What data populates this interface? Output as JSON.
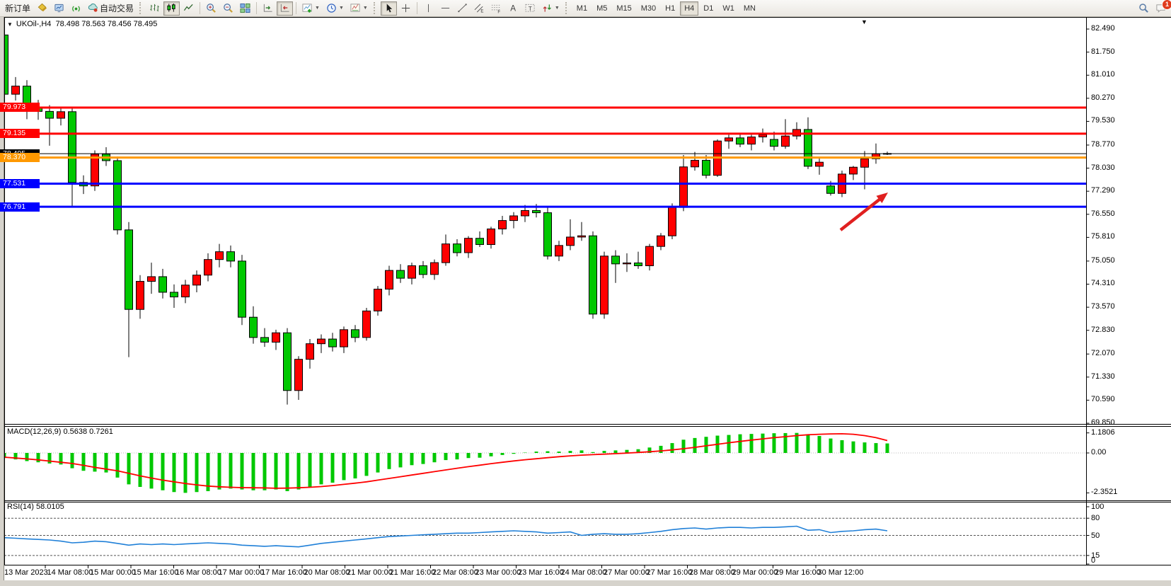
{
  "toolbar": {
    "new_order_label": "新订单",
    "autotrade_label": "自动交易",
    "notification_count": "1",
    "timeframes": [
      "M1",
      "M5",
      "M15",
      "M30",
      "H1",
      "H4",
      "D1",
      "W1",
      "MN"
    ],
    "active_timeframe": "H4",
    "letters": {
      "text": "A",
      "textbox": "T",
      "channel": "E",
      "fibonacci": "F"
    },
    "icons": [
      "new-chart-icon",
      "market-watch-icon",
      "signals-icon",
      "autotrade-icon",
      "bar-chart-icon",
      "candlestick-icon",
      "line-chart-icon",
      "zoom-in-icon",
      "zoom-out-icon",
      "tile-windows-icon",
      "auto-scroll-icon",
      "chart-shift-icon",
      "indicators-icon",
      "periods-icon",
      "templates-icon",
      "cursor-icon",
      "crosshair-icon",
      "vertical-line-icon",
      "horizontal-line-icon",
      "trendline-icon",
      "channel-icon",
      "fibonacci-icon",
      "text-icon",
      "text-label-icon",
      "shapes-icon",
      "search-icon",
      "chat-icon"
    ]
  },
  "chart": {
    "title_symbol": "UKOil-,H4",
    "title_ohlc": "78.498 78.563 78.456 78.495",
    "open": "78.498",
    "high": "78.563",
    "low": "78.456",
    "close": "78.495",
    "collapse_triangle": "▼",
    "shift_marker": "▼"
  },
  "chart_data": {
    "type": "candlestick",
    "symbol": "UKOil-",
    "timeframe": "H4",
    "bull_color": "#ff0000",
    "bear_color": "#00c800",
    "wick_color": "#000000",
    "price_ticks": [
      "82.490",
      "81.750",
      "81.010",
      "80.270",
      "79.530",
      "78.770",
      "78.030",
      "77.290",
      "76.550",
      "75.810",
      "75.050",
      "74.310",
      "73.570",
      "72.830",
      "72.070",
      "71.330",
      "70.590",
      "69.850"
    ],
    "time_labels": [
      "13 Mar 2023",
      "14 Mar 08:00",
      "15 Mar 00:00",
      "15 Mar 16:00",
      "16 Mar 08:00",
      "17 Mar 00:00",
      "17 Mar 16:00",
      "20 Mar 08:00",
      "21 Mar 00:00",
      "21 Mar 16:00",
      "22 Mar 08:00",
      "23 Mar 00:00",
      "23 Mar 16:00",
      "24 Mar 08:00",
      "27 Mar 00:00",
      "27 Mar 16:00",
      "28 Mar 08:00",
      "29 Mar 00:00",
      "29 Mar 16:00",
      "30 Mar 12:00"
    ],
    "levels": [
      {
        "label": "79.973",
        "price": 79.973,
        "color": "#ff0000",
        "width": 3
      },
      {
        "label": "79.135",
        "price": 79.135,
        "color": "#ff0000",
        "width": 3
      },
      {
        "label": "78.495",
        "price": 78.495,
        "color": "#000000",
        "width": 1
      },
      {
        "label": "78.370",
        "price": 78.37,
        "color": "#ff9900",
        "width": 3
      },
      {
        "label": "77.531",
        "price": 77.531,
        "color": "#0000ff",
        "width": 3
      },
      {
        "label": "76.791",
        "price": 76.791,
        "color": "#0000ff",
        "width": 3
      }
    ],
    "candles": [
      [
        82.3,
        82.46,
        80.25,
        80.4
      ],
      [
        80.4,
        80.95,
        80.2,
        80.66
      ],
      [
        80.66,
        80.85,
        79.6,
        79.95
      ],
      [
        79.95,
        80.22,
        79.58,
        79.85
      ],
      [
        79.85,
        80.05,
        78.75,
        79.63
      ],
      [
        79.63,
        80.0,
        79.4,
        79.84
      ],
      [
        79.84,
        79.95,
        76.81,
        77.57
      ],
      [
        77.57,
        77.8,
        77.2,
        77.46
      ],
      [
        77.46,
        78.6,
        77.3,
        78.48
      ],
      [
        78.48,
        78.7,
        78.1,
        78.27
      ],
      [
        78.27,
        78.4,
        75.9,
        76.05
      ],
      [
        76.05,
        76.3,
        71.97,
        73.5
      ],
      [
        73.5,
        74.6,
        73.2,
        74.4
      ],
      [
        74.4,
        75.0,
        74.0,
        74.55
      ],
      [
        74.55,
        74.8,
        73.85,
        74.05
      ],
      [
        74.05,
        74.3,
        73.55,
        73.9
      ],
      [
        73.9,
        74.45,
        73.7,
        74.28
      ],
      [
        74.28,
        74.75,
        74.05,
        74.6
      ],
      [
        74.6,
        75.3,
        74.4,
        75.1
      ],
      [
        75.1,
        75.6,
        74.85,
        75.35
      ],
      [
        75.35,
        75.55,
        74.85,
        75.05
      ],
      [
        75.05,
        75.25,
        73.0,
        73.25
      ],
      [
        73.25,
        73.6,
        72.4,
        72.6
      ],
      [
        72.6,
        72.9,
        72.3,
        72.45
      ],
      [
        72.45,
        72.85,
        72.2,
        72.75
      ],
      [
        72.75,
        72.9,
        70.45,
        70.9
      ],
      [
        70.9,
        72.0,
        70.6,
        71.9
      ],
      [
        71.9,
        72.55,
        71.6,
        72.4
      ],
      [
        72.4,
        72.7,
        72.1,
        72.55
      ],
      [
        72.55,
        72.75,
        72.15,
        72.3
      ],
      [
        72.3,
        72.95,
        72.1,
        72.85
      ],
      [
        72.85,
        73.0,
        72.45,
        72.6
      ],
      [
        72.6,
        73.55,
        72.5,
        73.45
      ],
      [
        73.45,
        74.25,
        73.3,
        74.15
      ],
      [
        74.15,
        74.9,
        73.95,
        74.75
      ],
      [
        74.75,
        74.95,
        74.35,
        74.5
      ],
      [
        74.5,
        75.0,
        74.3,
        74.9
      ],
      [
        74.9,
        75.05,
        74.5,
        74.62
      ],
      [
        74.62,
        75.1,
        74.45,
        75.0
      ],
      [
        75.0,
        75.9,
        74.9,
        75.6
      ],
      [
        75.6,
        75.75,
        75.2,
        75.32
      ],
      [
        75.32,
        75.85,
        75.15,
        75.78
      ],
      [
        75.78,
        76.0,
        75.5,
        75.58
      ],
      [
        75.58,
        76.15,
        75.45,
        76.08
      ],
      [
        76.08,
        76.5,
        75.9,
        76.35
      ],
      [
        76.35,
        76.62,
        76.1,
        76.5
      ],
      [
        76.5,
        76.85,
        76.3,
        76.67
      ],
      [
        76.67,
        76.88,
        76.45,
        76.6
      ],
      [
        76.6,
        76.8,
        75.1,
        75.21
      ],
      [
        75.21,
        75.7,
        75.05,
        75.55
      ],
      [
        75.55,
        76.39,
        75.4,
        75.82
      ],
      [
        75.82,
        76.3,
        75.7,
        75.86
      ],
      [
        75.86,
        76.0,
        73.2,
        73.35
      ],
      [
        73.35,
        75.35,
        73.2,
        75.21
      ],
      [
        75.21,
        75.4,
        74.35,
        74.96
      ],
      [
        74.96,
        75.3,
        74.7,
        74.99
      ],
      [
        74.99,
        75.35,
        74.8,
        74.9
      ],
      [
        74.9,
        75.6,
        74.75,
        75.52
      ],
      [
        75.52,
        75.95,
        75.4,
        75.86
      ],
      [
        75.86,
        76.9,
        75.75,
        76.77
      ],
      [
        76.77,
        78.45,
        76.65,
        78.07
      ],
      [
        78.07,
        78.55,
        77.95,
        78.28
      ],
      [
        78.28,
        78.45,
        77.7,
        77.8
      ],
      [
        77.8,
        78.95,
        77.75,
        78.9
      ],
      [
        78.9,
        79.1,
        78.65,
        79.0
      ],
      [
        79.0,
        79.15,
        78.7,
        78.8
      ],
      [
        78.8,
        79.1,
        78.6,
        79.03
      ],
      [
        79.03,
        79.3,
        78.85,
        79.1
      ],
      [
        78.95,
        79.2,
        78.6,
        78.73
      ],
      [
        78.73,
        79.6,
        78.65,
        79.06
      ],
      [
        79.06,
        79.5,
        78.95,
        79.27
      ],
      [
        79.27,
        79.66,
        78.0,
        78.09
      ],
      [
        78.09,
        78.35,
        77.82,
        78.22
      ],
      [
        77.46,
        77.62,
        77.15,
        77.22
      ],
      [
        77.22,
        77.95,
        77.1,
        77.84
      ],
      [
        77.84,
        78.1,
        77.65,
        78.06
      ],
      [
        78.06,
        78.58,
        77.35,
        78.33
      ],
      [
        78.33,
        78.82,
        78.17,
        78.49
      ],
      [
        78.49,
        78.56,
        78.45,
        78.5
      ]
    ],
    "indicators": {
      "macd": {
        "label": "MACD(12,26,9) 0.5638 0.7261",
        "scale_ticks": [
          "1.1806",
          "0.00",
          "-2.3521"
        ],
        "hist_color": "#00c800",
        "signal_color": "#ff0000",
        "histogram": [
          -0.3,
          -0.38,
          -0.48,
          -0.55,
          -0.62,
          -0.68,
          -0.9,
          -1.05,
          -1.1,
          -1.15,
          -1.45,
          -1.85,
          -2.0,
          -2.1,
          -2.2,
          -2.3,
          -2.35,
          -2.3,
          -2.25,
          -2.15,
          -2.1,
          -2.15,
          -2.2,
          -2.2,
          -2.15,
          -2.25,
          -2.15,
          -2.0,
          -1.85,
          -1.75,
          -1.6,
          -1.5,
          -1.35,
          -1.15,
          -0.95,
          -0.85,
          -0.72,
          -0.65,
          -0.55,
          -0.42,
          -0.38,
          -0.3,
          -0.28,
          -0.2,
          -0.12,
          -0.05,
          0.02,
          0.08,
          0.1,
          0.08,
          0.12,
          0.15,
          0.05,
          0.12,
          0.15,
          0.18,
          0.22,
          0.32,
          0.42,
          0.58,
          0.78,
          0.88,
          0.95,
          1.02,
          1.06,
          1.1,
          1.12,
          1.14,
          1.16,
          1.17,
          1.18,
          1.1,
          1.0,
          0.85,
          0.75,
          0.68,
          0.62,
          0.58,
          0.56
        ],
        "signal": [
          -0.25,
          -0.3,
          -0.35,
          -0.41,
          -0.48,
          -0.55,
          -0.62,
          -0.73,
          -0.85,
          -0.95,
          -1.05,
          -1.2,
          -1.35,
          -1.48,
          -1.6,
          -1.7,
          -1.8,
          -1.88,
          -1.95,
          -1.99,
          -2.02,
          -2.04,
          -2.05,
          -2.06,
          -2.08,
          -2.07,
          -2.05,
          -2.02,
          -1.98,
          -1.92,
          -1.85,
          -1.78,
          -1.7,
          -1.6,
          -1.5,
          -1.4,
          -1.3,
          -1.2,
          -1.1,
          -1.0,
          -0.9,
          -0.81,
          -0.72,
          -0.63,
          -0.55,
          -0.47,
          -0.4,
          -0.34,
          -0.28,
          -0.22,
          -0.17,
          -0.13,
          -0.1,
          -0.07,
          -0.04,
          -0.01,
          0.03,
          0.07,
          0.12,
          0.18,
          0.25,
          0.33,
          0.42,
          0.51,
          0.6,
          0.68,
          0.76,
          0.83,
          0.9,
          0.96,
          1.02,
          1.07,
          1.1,
          1.12,
          1.13,
          1.1,
          1.02,
          0.9,
          0.73
        ]
      },
      "rsi": {
        "label": "RSI(14) 58.0105",
        "scale_ticks": [
          "100",
          "80",
          "50",
          "15",
          "0"
        ],
        "line_color": "#2080d8",
        "level_lines": [
          80,
          50,
          15
        ],
        "values": [
          46,
          45,
          44,
          43,
          42,
          40,
          37,
          38,
          40,
          39,
          36,
          33,
          35,
          34,
          35,
          34,
          35,
          36,
          37,
          36,
          35,
          33,
          32,
          31,
          32,
          31,
          30,
          33,
          36,
          38,
          40,
          42,
          44,
          46,
          48,
          49,
          50,
          51,
          52,
          53,
          54,
          54,
          55,
          56,
          57,
          58,
          57,
          56,
          54,
          55,
          56,
          50,
          52,
          53,
          52,
          52,
          53,
          55,
          57,
          60,
          62,
          63,
          61,
          63,
          64,
          64,
          63,
          64,
          64,
          65,
          66,
          59,
          60,
          55,
          57,
          58,
          60,
          61,
          58
        ]
      }
    },
    "annotation_arrow": {
      "from": [
        1188,
        325
      ],
      "to": [
        1255,
        272
      ],
      "color": "#e02020"
    }
  }
}
